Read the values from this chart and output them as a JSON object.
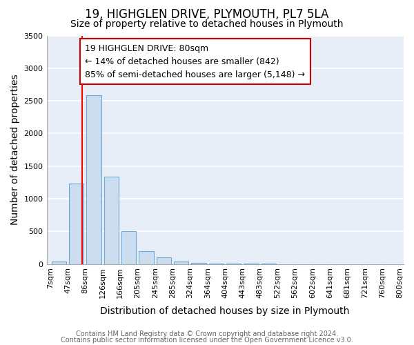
{
  "title1": "19, HIGHGLEN DRIVE, PLYMOUTH, PL7 5LA",
  "title2": "Size of property relative to detached houses in Plymouth",
  "xlabel": "Distribution of detached houses by size in Plymouth",
  "ylabel": "Number of detached properties",
  "bin_labels": [
    "7sqm",
    "47sqm",
    "86sqm",
    "126sqm",
    "166sqm",
    "205sqm",
    "245sqm",
    "285sqm",
    "324sqm",
    "364sqm",
    "404sqm",
    "443sqm",
    "483sqm",
    "522sqm",
    "562sqm",
    "602sqm",
    "641sqm",
    "681sqm",
    "721sqm",
    "760sqm",
    "800sqm"
  ],
  "bin_edges": [
    7,
    47,
    86,
    126,
    166,
    205,
    245,
    285,
    324,
    364,
    404,
    443,
    483,
    522,
    562,
    602,
    641,
    681,
    721,
    760,
    800
  ],
  "bar_heights": [
    40,
    1230,
    2590,
    1340,
    500,
    200,
    105,
    40,
    15,
    8,
    5,
    3,
    2,
    0,
    0,
    0,
    0,
    0,
    0,
    0,
    0
  ],
  "bar_color": "#ccddf0",
  "bar_edge_color": "#6aaad4",
  "red_line_x": 80,
  "ylim": [
    0,
    3500
  ],
  "yticks": [
    0,
    500,
    1000,
    1500,
    2000,
    2500,
    3000,
    3500
  ],
  "annotation_line1": "19 HIGHGLEN DRIVE: 80sqm",
  "annotation_line2": "← 14% of detached houses are smaller (842)",
  "annotation_line3": "85% of semi-detached houses are larger (5,148) →",
  "annotation_box_facecolor": "#ffffff",
  "annotation_box_edgecolor": "#cc0000",
  "footer1": "Contains HM Land Registry data © Crown copyright and database right 2024.",
  "footer2": "Contains public sector information licensed under the Open Government Licence v3.0.",
  "fig_facecolor": "#ffffff",
  "axes_facecolor": "#e8eef8",
  "grid_color": "#ffffff",
  "title1_fontsize": 12,
  "title2_fontsize": 10,
  "axis_label_fontsize": 10,
  "tick_fontsize": 8,
  "footer_fontsize": 7,
  "annot_fontsize": 9
}
